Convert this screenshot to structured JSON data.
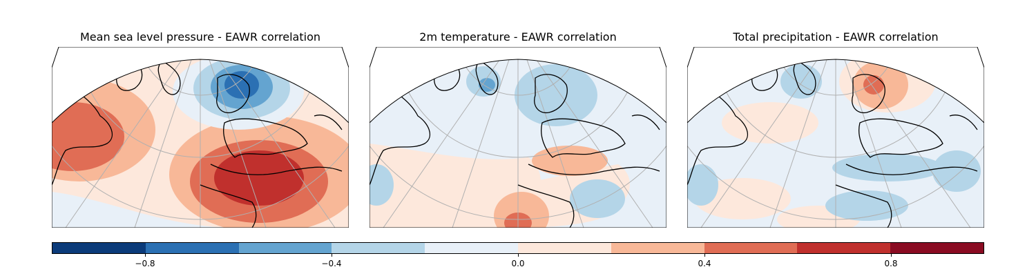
{
  "figure": {
    "panels": [
      {
        "id": "mslp",
        "title": "Mean sea level pressure - EAWR correlation"
      },
      {
        "id": "t2m",
        "title": "2m temperature - EAWR correlation"
      },
      {
        "id": "tp",
        "title": "Total precipitation - EAWR correlation"
      }
    ]
  },
  "colorbar": {
    "colors": [
      "#0b3b7a",
      "#2b70b3",
      "#64a4d0",
      "#b4d5e8",
      "#e8f0f8",
      "#fde8dc",
      "#f8b898",
      "#e06d55",
      "#c0302d",
      "#8a0b22"
    ],
    "ticks": [
      {
        "value": -0.8,
        "label": "−0.8"
      },
      {
        "value": -0.4,
        "label": "−0.4"
      },
      {
        "value": 0.0,
        "label": "0.0"
      },
      {
        "value": 0.4,
        "label": "0.4"
      },
      {
        "value": 0.8,
        "label": "0.8"
      }
    ],
    "range": [
      -1.0,
      1.0
    ]
  },
  "map_colors": {
    "coastline": "#000000",
    "gridlines": "#b0b0b0"
  }
}
